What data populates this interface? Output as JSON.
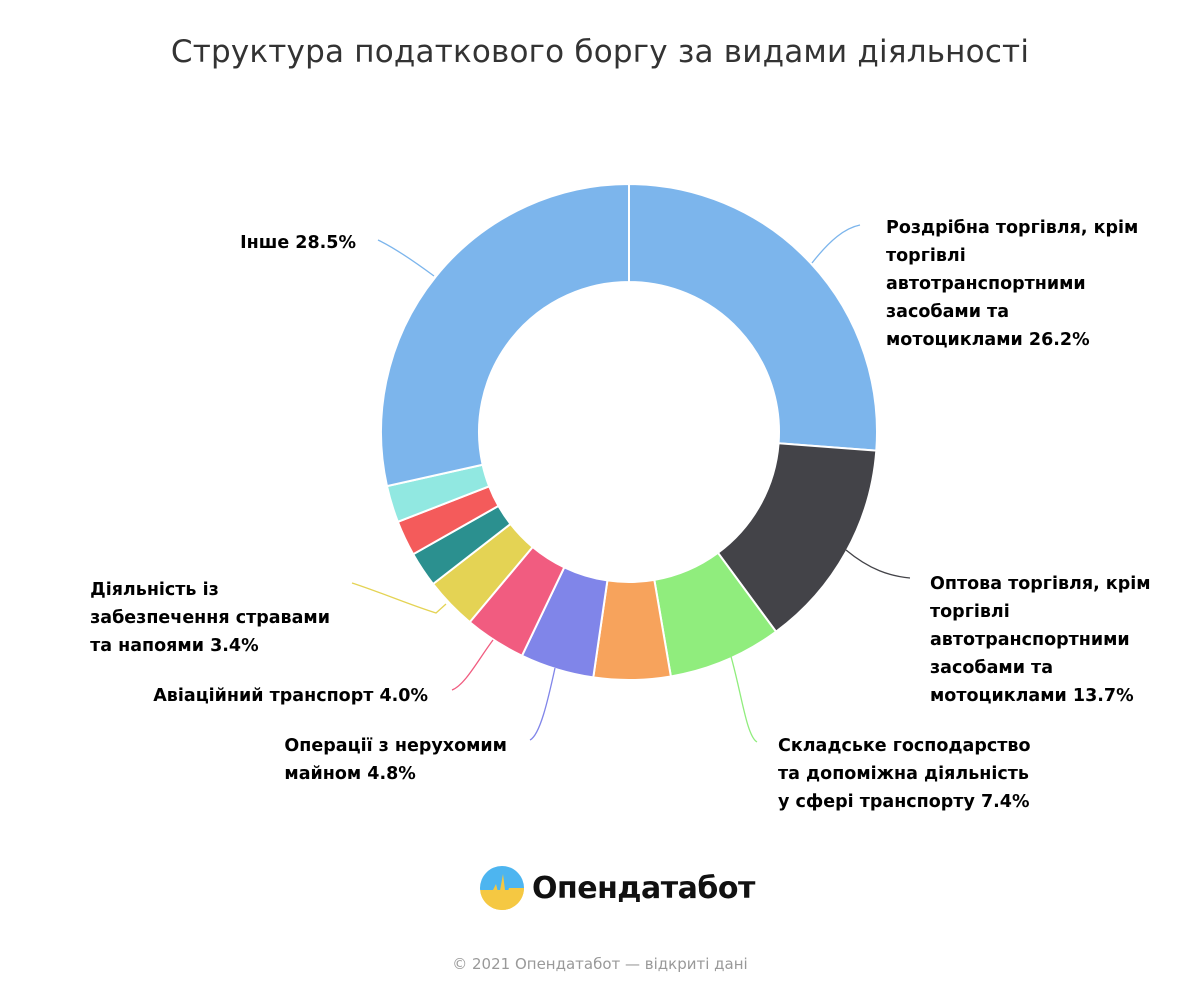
{
  "chart_data": {
    "type": "pie",
    "donut": true,
    "title": "Структура податкового боргу за видами діяльності",
    "slices": [
      {
        "label": "Роздрібна торгівля, крім\nторгівлі\nавтотранспортними\nзасобами та\nмотоциклами 26.2%",
        "value": 26.2,
        "color": "#7cb5ec"
      },
      {
        "label": "Оптова торгівля, крім\nторгівлі\nавтотранспортними\nзасобами та\nмотоциклами 13.7%",
        "value": 13.7,
        "color": "#434348"
      },
      {
        "label": "Складське господарство\nта допоміжна діяльність\nу сфері транспорту 7.4%",
        "value": 7.4,
        "color": "#90ed7d"
      },
      {
        "label": "",
        "value": 5.0,
        "color": "#f7a35c"
      },
      {
        "label": "Операції з нерухомим\nмайном 4.8%",
        "value": 4.8,
        "color": "#8085e9"
      },
      {
        "label": "Авіаційний транспорт 4.0%",
        "value": 4.0,
        "color": "#f15c80"
      },
      {
        "label": "Діяльність із\nзабезпечення стравами\nта напоями 3.4%",
        "value": 3.4,
        "color": "#e4d354"
      },
      {
        "label": "",
        "value": 2.3,
        "color": "#2b908f"
      },
      {
        "label": "",
        "value": 2.3,
        "color": "#f45b5b"
      },
      {
        "label": "",
        "value": 2.4,
        "color": "#91e8e1"
      },
      {
        "label": "Інше 28.5%",
        "value": 28.5,
        "color": "#7cb5ec"
      }
    ]
  },
  "logo": {
    "text": "Опендатабот"
  },
  "footer": "© 2021 Опендатабот — відкриті дані"
}
